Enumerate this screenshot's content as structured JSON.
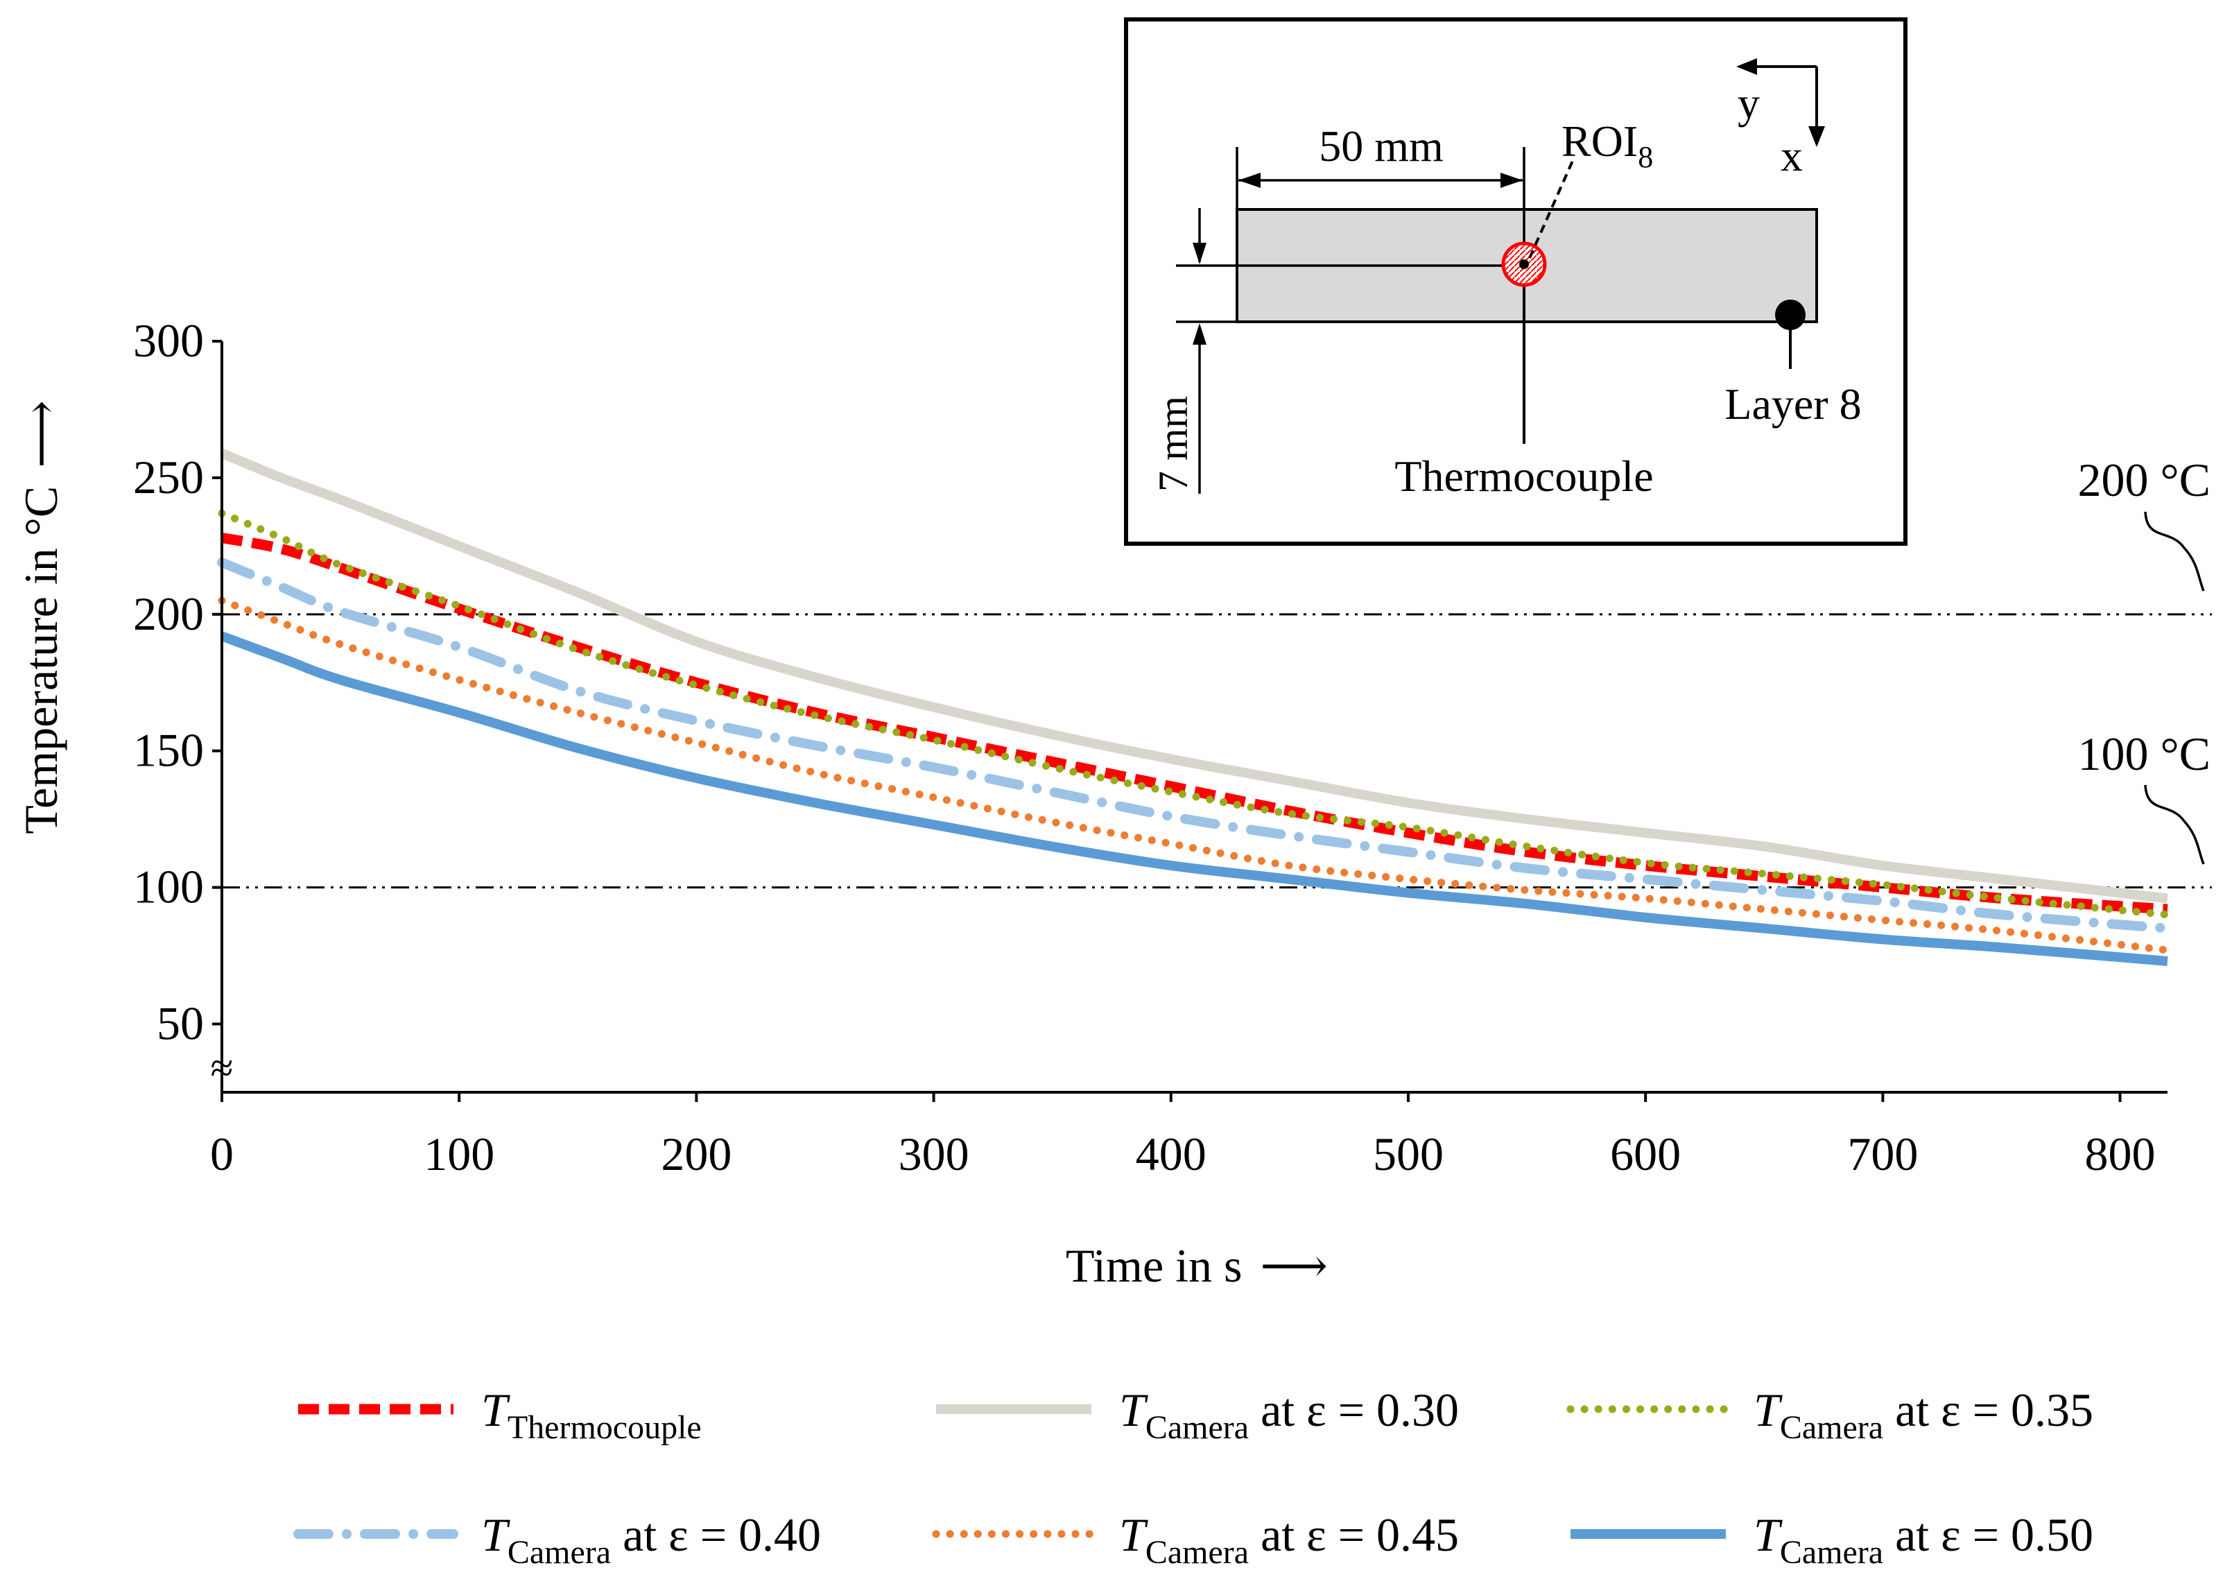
{
  "chart_data": {
    "type": "line",
    "ylabel": "Temperature in °C",
    "xlabel": "Time in s",
    "axis_arrow": "⟶",
    "xlim": [
      0,
      820
    ],
    "ylim": [
      25,
      300
    ],
    "x_ticks": [
      0,
      100,
      200,
      300,
      400,
      500,
      600,
      700,
      800
    ],
    "y_ticks": [
      50,
      100,
      150,
      200,
      250,
      300
    ],
    "axis_break": "≈",
    "reference_lines": [
      {
        "value": 200,
        "label": "200 °C"
      },
      {
        "value": 100,
        "label": "100 °C"
      }
    ],
    "series": [
      {
        "name": "T_Thermocouple",
        "sym": "T",
        "sub": "Thermocouple",
        "suffix": "",
        "color": "#ff0000",
        "style": "dashed",
        "x": [
          0,
          25,
          50,
          100,
          150,
          200,
          250,
          300,
          350,
          400,
          450,
          500,
          550,
          600,
          650,
          700,
          750,
          820
        ],
        "y": [
          228,
          224,
          217,
          202,
          188,
          175,
          164,
          155,
          146,
          137,
          128,
          120,
          113,
          108,
          104,
          100,
          96,
          92
        ]
      },
      {
        "name": "T_Camera at ε = 0.30",
        "sym": "T",
        "sub": "Camera",
        "suffix": " at ε = 0.30",
        "color": "#d8d5cc",
        "style": "solid",
        "x": [
          0,
          25,
          50,
          100,
          150,
          200,
          250,
          300,
          350,
          400,
          450,
          500,
          550,
          600,
          650,
          700,
          750,
          820
        ],
        "y": [
          259,
          250,
          242,
          225,
          208,
          190,
          177,
          166,
          156,
          147,
          139,
          131,
          125,
          120,
          115,
          108,
          103,
          96
        ]
      },
      {
        "name": "T_Camera at ε = 0.35",
        "sym": "T",
        "sub": "Camera",
        "suffix": " at ε = 0.35",
        "color": "#9aaa1a",
        "style": "dotted",
        "x": [
          0,
          25,
          50,
          100,
          150,
          200,
          250,
          300,
          350,
          400,
          450,
          500,
          550,
          600,
          650,
          700,
          750,
          820
        ],
        "y": [
          237,
          228,
          218,
          203,
          187,
          174,
          163,
          154,
          144,
          135,
          127,
          122,
          115,
          109,
          105,
          101,
          96,
          90
        ]
      },
      {
        "name": "T_Camera at ε = 0.40",
        "sym": "T",
        "sub": "Camera",
        "suffix": " at ε = 0.40",
        "color": "#9cc3e6",
        "style": "dashdot",
        "x": [
          0,
          25,
          50,
          100,
          150,
          200,
          250,
          300,
          350,
          400,
          450,
          500,
          550,
          600,
          650,
          700,
          750,
          820
        ],
        "y": [
          219,
          210,
          201,
          188,
          172,
          161,
          152,
          144,
          135,
          126,
          119,
          113,
          107,
          103,
          99,
          95,
          90,
          85
        ]
      },
      {
        "name": "T_Camera at ε = 0.45",
        "sym": "T",
        "sub": "Camera",
        "suffix": " at ε = 0.45",
        "color": "#ed7d31",
        "style": "dotted",
        "x": [
          0,
          25,
          50,
          100,
          150,
          200,
          250,
          300,
          350,
          400,
          450,
          500,
          550,
          600,
          650,
          700,
          750,
          820
        ],
        "y": [
          205,
          197,
          189,
          176,
          164,
          153,
          142,
          133,
          124,
          116,
          108,
          103,
          99,
          96,
          92,
          88,
          84,
          77
        ]
      },
      {
        "name": "T_Camera at ε = 0.50",
        "sym": "T",
        "sub": "Camera",
        "suffix": " at ε = 0.50",
        "color": "#5b9bd5",
        "style": "solid",
        "x": [
          0,
          25,
          50,
          100,
          150,
          200,
          250,
          300,
          350,
          400,
          450,
          500,
          550,
          600,
          650,
          700,
          750,
          820
        ],
        "y": [
          192,
          184,
          176,
          164,
          151,
          140,
          131,
          123,
          115,
          108,
          103,
          98,
          94,
          89,
          85,
          81,
          78,
          73
        ]
      }
    ]
  },
  "inset": {
    "dim_width": "50 mm",
    "dim_height": "7 mm",
    "roi_label": "ROI",
    "roi_sub": "8",
    "axis_y": "y",
    "axis_x": "x",
    "thermocouple_label": "Thermocouple",
    "layer_label": "Layer 8",
    "roi_color": "#ff0000"
  }
}
